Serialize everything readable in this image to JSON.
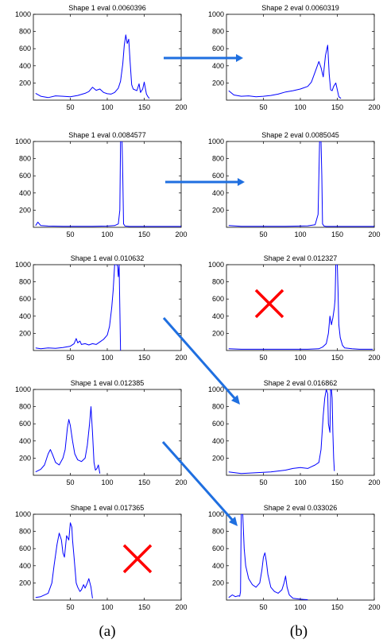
{
  "colors": {
    "trace": "#0000ff",
    "arrow": "#1f6fe0",
    "cross": "#ff0000",
    "axes": "#000000"
  },
  "column_labels": [
    "(a)",
    "(b)"
  ],
  "chart_data": [
    {
      "type": "line",
      "title": "Shape 1 eval 0.0060396",
      "xlim": [
        0,
        200
      ],
      "ylim": [
        0,
        1000
      ],
      "xticks": [
        50,
        100,
        150,
        200
      ],
      "yticks": [
        200,
        400,
        600,
        800,
        1000
      ],
      "x": [
        3,
        10,
        20,
        30,
        40,
        50,
        60,
        70,
        75,
        80,
        85,
        90,
        95,
        100,
        105,
        110,
        115,
        118,
        121,
        123,
        125,
        127,
        129,
        131,
        133,
        135,
        140,
        143,
        145,
        148,
        150,
        153,
        155,
        157
      ],
      "y": [
        80,
        45,
        30,
        50,
        45,
        40,
        55,
        80,
        100,
        150,
        115,
        130,
        90,
        75,
        70,
        90,
        140,
        220,
        420,
        640,
        760,
        660,
        710,
        440,
        180,
        130,
        110,
        190,
        90,
        130,
        210,
        70,
        40,
        20
      ]
    },
    {
      "type": "line",
      "title": "Shape 2 eval 0.0060319",
      "xlim": [
        0,
        200
      ],
      "ylim": [
        0,
        1000
      ],
      "xticks": [
        50,
        100,
        150,
        200
      ],
      "yticks": [
        200,
        400,
        600,
        800,
        1000
      ],
      "x": [
        3,
        10,
        20,
        30,
        40,
        50,
        60,
        70,
        80,
        90,
        100,
        110,
        115,
        120,
        125,
        128,
        131,
        134,
        137,
        139,
        141,
        143,
        145,
        148,
        150,
        152,
        155
      ],
      "y": [
        110,
        60,
        45,
        50,
        40,
        45,
        55,
        70,
        95,
        110,
        130,
        160,
        210,
        330,
        450,
        380,
        270,
        520,
        640,
        300,
        120,
        110,
        160,
        200,
        120,
        40,
        20
      ]
    },
    {
      "type": "line",
      "title": "Shape 1 eval 0.0084577",
      "xlim": [
        0,
        200
      ],
      "ylim": [
        0,
        1000
      ],
      "xticks": [
        50,
        100,
        150,
        200
      ],
      "yticks": [
        200,
        400,
        600,
        800,
        1000
      ],
      "x": [
        3,
        6,
        10,
        20,
        40,
        60,
        80,
        100,
        110,
        115,
        117,
        118,
        119,
        120,
        121,
        122,
        124,
        130,
        150,
        170,
        190,
        200
      ],
      "y": [
        20,
        60,
        20,
        15,
        12,
        12,
        12,
        15,
        20,
        40,
        200,
        1000,
        1000,
        1000,
        600,
        40,
        15,
        10,
        10,
        10,
        10,
        10
      ]
    },
    {
      "type": "line",
      "title": "Shape 2 eval 0.0085045",
      "xlim": [
        0,
        200
      ],
      "ylim": [
        0,
        1000
      ],
      "xticks": [
        50,
        100,
        150,
        200
      ],
      "yticks": [
        200,
        400,
        600,
        800,
        1000
      ],
      "x": [
        3,
        20,
        40,
        60,
        80,
        100,
        110,
        120,
        124,
        126,
        127,
        128,
        129,
        130,
        132,
        135,
        150,
        170,
        190,
        200
      ],
      "y": [
        20,
        12,
        12,
        12,
        12,
        15,
        18,
        30,
        150,
        1000,
        1000,
        1000,
        600,
        40,
        15,
        10,
        10,
        10,
        10,
        10
      ]
    },
    {
      "type": "line",
      "title": "Shape 1 eval 0.010632",
      "xlim": [
        0,
        200
      ],
      "ylim": [
        0,
        1000
      ],
      "xticks": [
        50,
        100,
        150,
        200
      ],
      "yticks": [
        200,
        400,
        600,
        800,
        1000
      ],
      "x": [
        3,
        10,
        20,
        30,
        40,
        50,
        55,
        58,
        60,
        63,
        65,
        70,
        75,
        80,
        85,
        90,
        95,
        100,
        103,
        106,
        108,
        110,
        111,
        112,
        113,
        114,
        115,
        116,
        117,
        118
      ],
      "y": [
        30,
        20,
        30,
        25,
        35,
        50,
        80,
        140,
        90,
        110,
        70,
        80,
        65,
        80,
        70,
        100,
        130,
        180,
        280,
        500,
        700,
        1000,
        1000,
        1000,
        1000,
        980,
        860,
        1000,
        500,
        0
      ]
    },
    {
      "type": "line",
      "title": "Shape 2 eval 0.012327",
      "xlim": [
        0,
        200
      ],
      "ylim": [
        0,
        1000
      ],
      "xticks": [
        50,
        100,
        150,
        200
      ],
      "yticks": [
        200,
        400,
        600,
        800,
        1000
      ],
      "x": [
        3,
        20,
        50,
        80,
        110,
        125,
        130,
        135,
        138,
        140,
        142,
        144,
        146,
        147,
        148,
        149,
        150,
        151,
        152,
        154,
        157,
        160,
        170,
        180,
        190,
        198
      ],
      "y": [
        20,
        15,
        15,
        15,
        15,
        20,
        40,
        80,
        200,
        400,
        300,
        380,
        500,
        600,
        1000,
        1000,
        1000,
        700,
        300,
        150,
        60,
        30,
        20,
        15,
        15,
        15
      ]
    },
    {
      "type": "line",
      "title": "Shape 1 eval 0.012385",
      "xlim": [
        0,
        200
      ],
      "ylim": [
        0,
        1000
      ],
      "xticks": [
        50,
        100,
        150,
        200
      ],
      "yticks": [
        200,
        400,
        600,
        800,
        1000
      ],
      "x": [
        3,
        10,
        15,
        20,
        23,
        26,
        30,
        35,
        40,
        43,
        46,
        48,
        50,
        53,
        56,
        60,
        65,
        70,
        73,
        76,
        78,
        80,
        82,
        84,
        86,
        88,
        90
      ],
      "y": [
        40,
        70,
        120,
        250,
        300,
        240,
        150,
        120,
        200,
        300,
        550,
        650,
        580,
        400,
        250,
        180,
        160,
        200,
        350,
        600,
        800,
        500,
        150,
        60,
        80,
        120,
        20
      ]
    },
    {
      "type": "line",
      "title": "Shape 2 eval 0.016862",
      "xlim": [
        0,
        200
      ],
      "ylim": [
        0,
        1000
      ],
      "xticks": [
        50,
        100,
        150,
        200
      ],
      "yticks": [
        200,
        400,
        600,
        800,
        1000
      ],
      "x": [
        3,
        20,
        40,
        60,
        70,
        80,
        90,
        100,
        110,
        115,
        120,
        125,
        128,
        131,
        133,
        135,
        137,
        138,
        140,
        141,
        142,
        143,
        144,
        145,
        146
      ],
      "y": [
        40,
        20,
        30,
        40,
        50,
        60,
        80,
        90,
        80,
        100,
        120,
        150,
        300,
        700,
        900,
        1000,
        950,
        600,
        500,
        1000,
        1000,
        900,
        500,
        200,
        50
      ]
    },
    {
      "type": "line",
      "title": "Shape 1 eval 0.017365",
      "xlim": [
        0,
        200
      ],
      "ylim": [
        0,
        1000
      ],
      "xticks": [
        50,
        100,
        150,
        200
      ],
      "yticks": [
        200,
        400,
        600,
        800,
        1000
      ],
      "x": [
        3,
        10,
        20,
        25,
        28,
        32,
        35,
        38,
        40,
        42,
        45,
        48,
        50,
        52,
        53,
        55,
        58,
        60,
        63,
        65,
        68,
        70,
        73,
        75,
        78,
        80
      ],
      "y": [
        30,
        40,
        80,
        200,
        400,
        650,
        780,
        700,
        550,
        500,
        750,
        700,
        900,
        850,
        700,
        500,
        200,
        150,
        100,
        120,
        180,
        140,
        200,
        250,
        150,
        20
      ]
    },
    {
      "type": "line",
      "title": "Shape 2 eval 0.033026",
      "xlim": [
        0,
        200
      ],
      "ylim": [
        0,
        1000
      ],
      "xticks": [
        50,
        100,
        150,
        200
      ],
      "yticks": [
        200,
        400,
        600,
        800,
        1000
      ],
      "x": [
        3,
        8,
        12,
        16,
        18,
        19,
        20,
        21,
        22,
        24,
        26,
        30,
        35,
        40,
        45,
        48,
        50,
        52,
        54,
        56,
        60,
        65,
        70,
        75,
        78,
        80,
        82,
        85,
        90,
        100,
        110
      ],
      "y": [
        30,
        60,
        40,
        50,
        45,
        100,
        1000,
        1000,
        1000,
        600,
        400,
        250,
        180,
        150,
        200,
        350,
        500,
        550,
        450,
        300,
        150,
        100,
        80,
        120,
        200,
        280,
        150,
        60,
        20,
        10,
        5
      ]
    }
  ]
}
